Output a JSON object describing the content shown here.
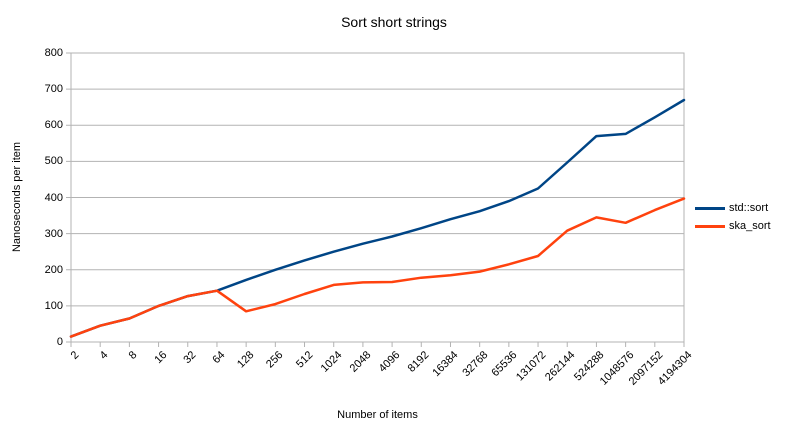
{
  "title": "Sort short strings",
  "chart_data": {
    "type": "line",
    "title": "Sort short strings",
    "xlabel": "Number of items",
    "ylabel": "Nanoseconds per item",
    "ylim": [
      0,
      800
    ],
    "ytick_step": 100,
    "grid": true,
    "legend_position": "right",
    "categories": [
      "2",
      "4",
      "8",
      "16",
      "32",
      "64",
      "128",
      "256",
      "512",
      "1024",
      "2048",
      "4096",
      "8192",
      "16384",
      "32768",
      "65536",
      "131072",
      "262144",
      "524288",
      "1048576",
      "2097152",
      "4194304"
    ],
    "series": [
      {
        "name": "std::sort",
        "color": "#004586",
        "values": [
          15,
          45,
          65,
          100,
          127,
          142,
          172,
          200,
          226,
          250,
          272,
          292,
          315,
          340,
          362,
          390,
          425,
          497,
          570,
          576,
          622,
          670
        ]
      },
      {
        "name": "ska_sort",
        "color": "#FF420E",
        "values": [
          15,
          45,
          65,
          100,
          127,
          142,
          85,
          105,
          133,
          158,
          165,
          166,
          178,
          185,
          195,
          215,
          238,
          308,
          345,
          330,
          365,
          397
        ]
      }
    ]
  },
  "colors": {
    "grid": "#b3b3b3",
    "plot_border": "#b3b3b3",
    "text": "#000000",
    "background": "#ffffff"
  }
}
